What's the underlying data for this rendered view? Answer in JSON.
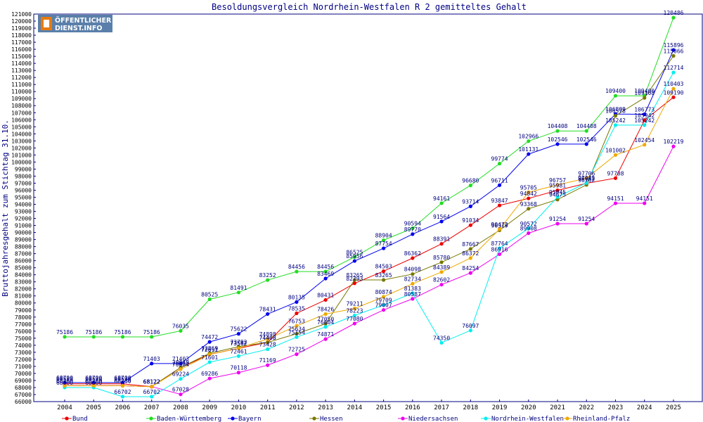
{
  "logo": {
    "line1": "ÖFFENTLICHER",
    "line2": "DIENST.INFO"
  },
  "chart_data": {
    "type": "line",
    "title": "Besoldungsvergleich Nordrhein-Westfalen R 2 gemitteltes Gehalt",
    "ylabel": "Bruttojahresgehalt zum Stichtag 31.10.",
    "xlabel": "",
    "ylim": [
      66000,
      121000
    ],
    "ytick_step": 1000,
    "grid": false,
    "legend_position": "bottom",
    "x": [
      2004,
      2005,
      2006,
      2007,
      2008,
      2009,
      2010,
      2011,
      2012,
      2013,
      2014,
      2015,
      2016,
      2017,
      2018,
      2019,
      2020,
      2021,
      2022,
      2023,
      2024,
      2025
    ],
    "series": [
      {
        "name": "Bund",
        "color": "#ee0000",
        "values": [
          68530,
          68530,
          68530,
          68122,
          70840,
          72691,
          73562,
          74408,
          78535,
          80431,
          82793,
          84503,
          86362,
          88391,
          91034,
          93847,
          94842,
          95981,
          96982,
          97708,
          105942,
          109190
        ]
      },
      {
        "name": "Baden-Württemberg",
        "color": "#22dd22",
        "values": [
          75186,
          75186,
          75186,
          75186,
          76035,
          80525,
          81491,
          83252,
          84456,
          84456,
          86525,
          88904,
          90594,
          94161,
          96680,
          99774,
          102966,
          104408,
          104408,
          109400,
          109400,
          120486
        ]
      },
      {
        "name": "Bayern",
        "color": "#0000ee",
        "values": [
          68700,
          68700,
          68700,
          71403,
          71403,
          74472,
          75622,
          78431,
          80135,
          83469,
          85956,
          87754,
          89770,
          91564,
          93714,
          96711,
          101131,
          102546,
          102546,
          106809,
          106773,
          115896
        ]
      },
      {
        "name": "Hessen",
        "color": "#777700",
        "values": [
          68260,
          68260,
          68260,
          68122,
          70840,
          72869,
          73792,
          74408,
          75634,
          77050,
          83265,
          83265,
          84098,
          85780,
          87667,
          90319,
          93368,
          94675,
          96762,
          106578,
          109108,
          115066
        ]
      },
      {
        "name": "Niedersachsen",
        "color": "#ee00ee",
        "values": [
          68260,
          68260,
          68260,
          68122,
          67028,
          69286,
          70118,
          71169,
          72725,
          74871,
          77080,
          79007,
          80587,
          82602,
          84254,
          86916,
          89908,
          91254,
          91254,
          94151,
          94151,
          102219
        ]
      },
      {
        "name": "Nordrhein-Westfalen",
        "color": "#00eeee",
        "values": [
          68000,
          68000,
          66702,
          66702,
          69224,
          71601,
          72461,
          73428,
          75154,
          76604,
          78223,
          79709,
          81383,
          74350,
          76097,
          87764,
          90572,
          95045,
          97045,
          105242,
          105242,
          112714
        ]
      },
      {
        "name": "Rheinland-Pfalz",
        "color": "#eeaa00",
        "values": [
          68260,
          68260,
          68260,
          68122,
          70604,
          72691,
          73562,
          74898,
          76753,
          78426,
          79211,
          80874,
          82734,
          84389,
          86372,
          90472,
          95705,
          96757,
          97706,
          101002,
          102454,
          110403
        ]
      }
    ]
  }
}
